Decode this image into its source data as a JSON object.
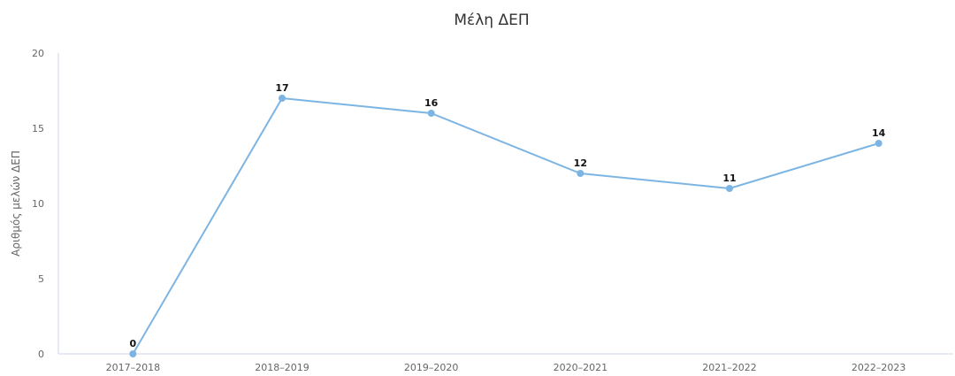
{
  "colors": {
    "series": "#7cb5e3",
    "axis": "#ccd6eb",
    "text": "#666666",
    "title": "#333333",
    "data_label": "#111111"
  },
  "chart_data": {
    "type": "line",
    "title": "Μέλη ΔΕΠ",
    "xlabel": "",
    "ylabel": "Αριθμός μελών ΔΕΠ",
    "categories": [
      "2017–2018",
      "2018–2019",
      "2019–2020",
      "2020–2021",
      "2021–2022",
      "2022–2023"
    ],
    "series": [
      {
        "values": [
          0,
          17,
          16,
          12,
          11,
          14
        ]
      }
    ],
    "ylim": [
      0,
      20
    ],
    "yticks": [
      0,
      5,
      10,
      15,
      20
    ],
    "grid": false,
    "legend": "none",
    "data_labels": true
  }
}
